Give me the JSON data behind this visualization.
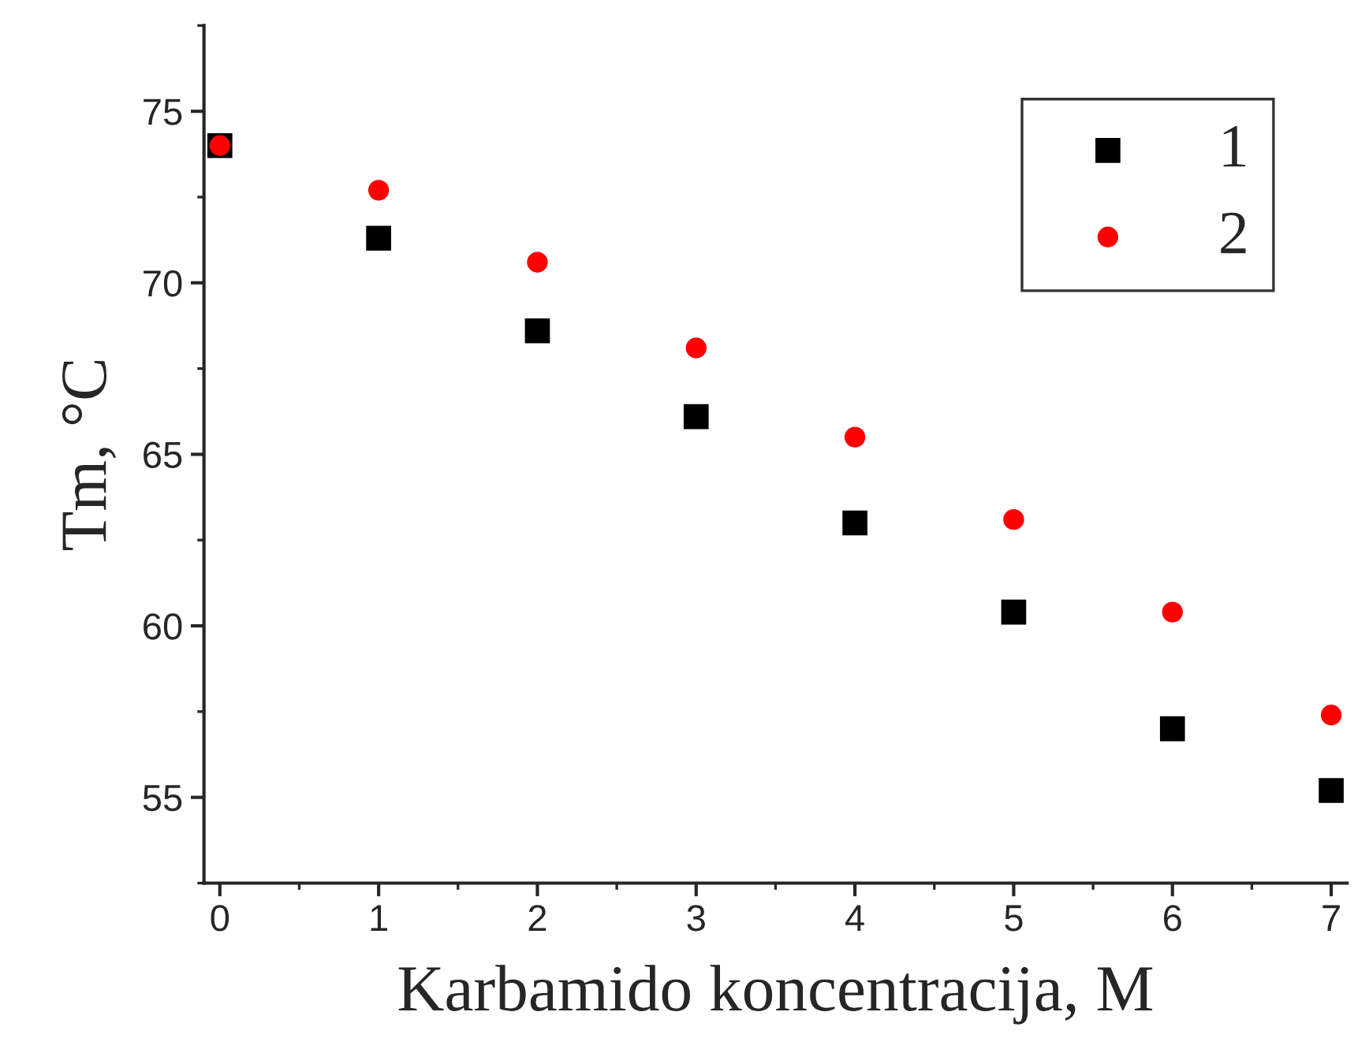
{
  "chart_data": {
    "type": "scatter",
    "xlabel": "Karbamido koncentracija, M",
    "ylabel": "Tm, °C",
    "x": [
      0,
      1,
      2,
      3,
      4,
      5,
      6,
      7
    ],
    "series": [
      {
        "name": "1",
        "color": "#000000",
        "marker": "square",
        "values": [
          74.0,
          71.3,
          68.6,
          66.1,
          63.0,
          60.4,
          57.0,
          55.2
        ]
      },
      {
        "name": "2",
        "color": "#ff0000",
        "marker": "circle",
        "values": [
          74.0,
          72.7,
          70.6,
          68.1,
          65.5,
          63.1,
          60.4,
          57.4
        ]
      }
    ],
    "xlim": [
      -0.1,
      7.1
    ],
    "xticks": [
      0,
      1,
      2,
      3,
      4,
      5,
      6,
      7
    ],
    "ylim": [
      52.5,
      77.5
    ],
    "yticks": [
      55,
      60,
      65,
      70,
      75
    ],
    "grid": false,
    "legend": "top right"
  }
}
